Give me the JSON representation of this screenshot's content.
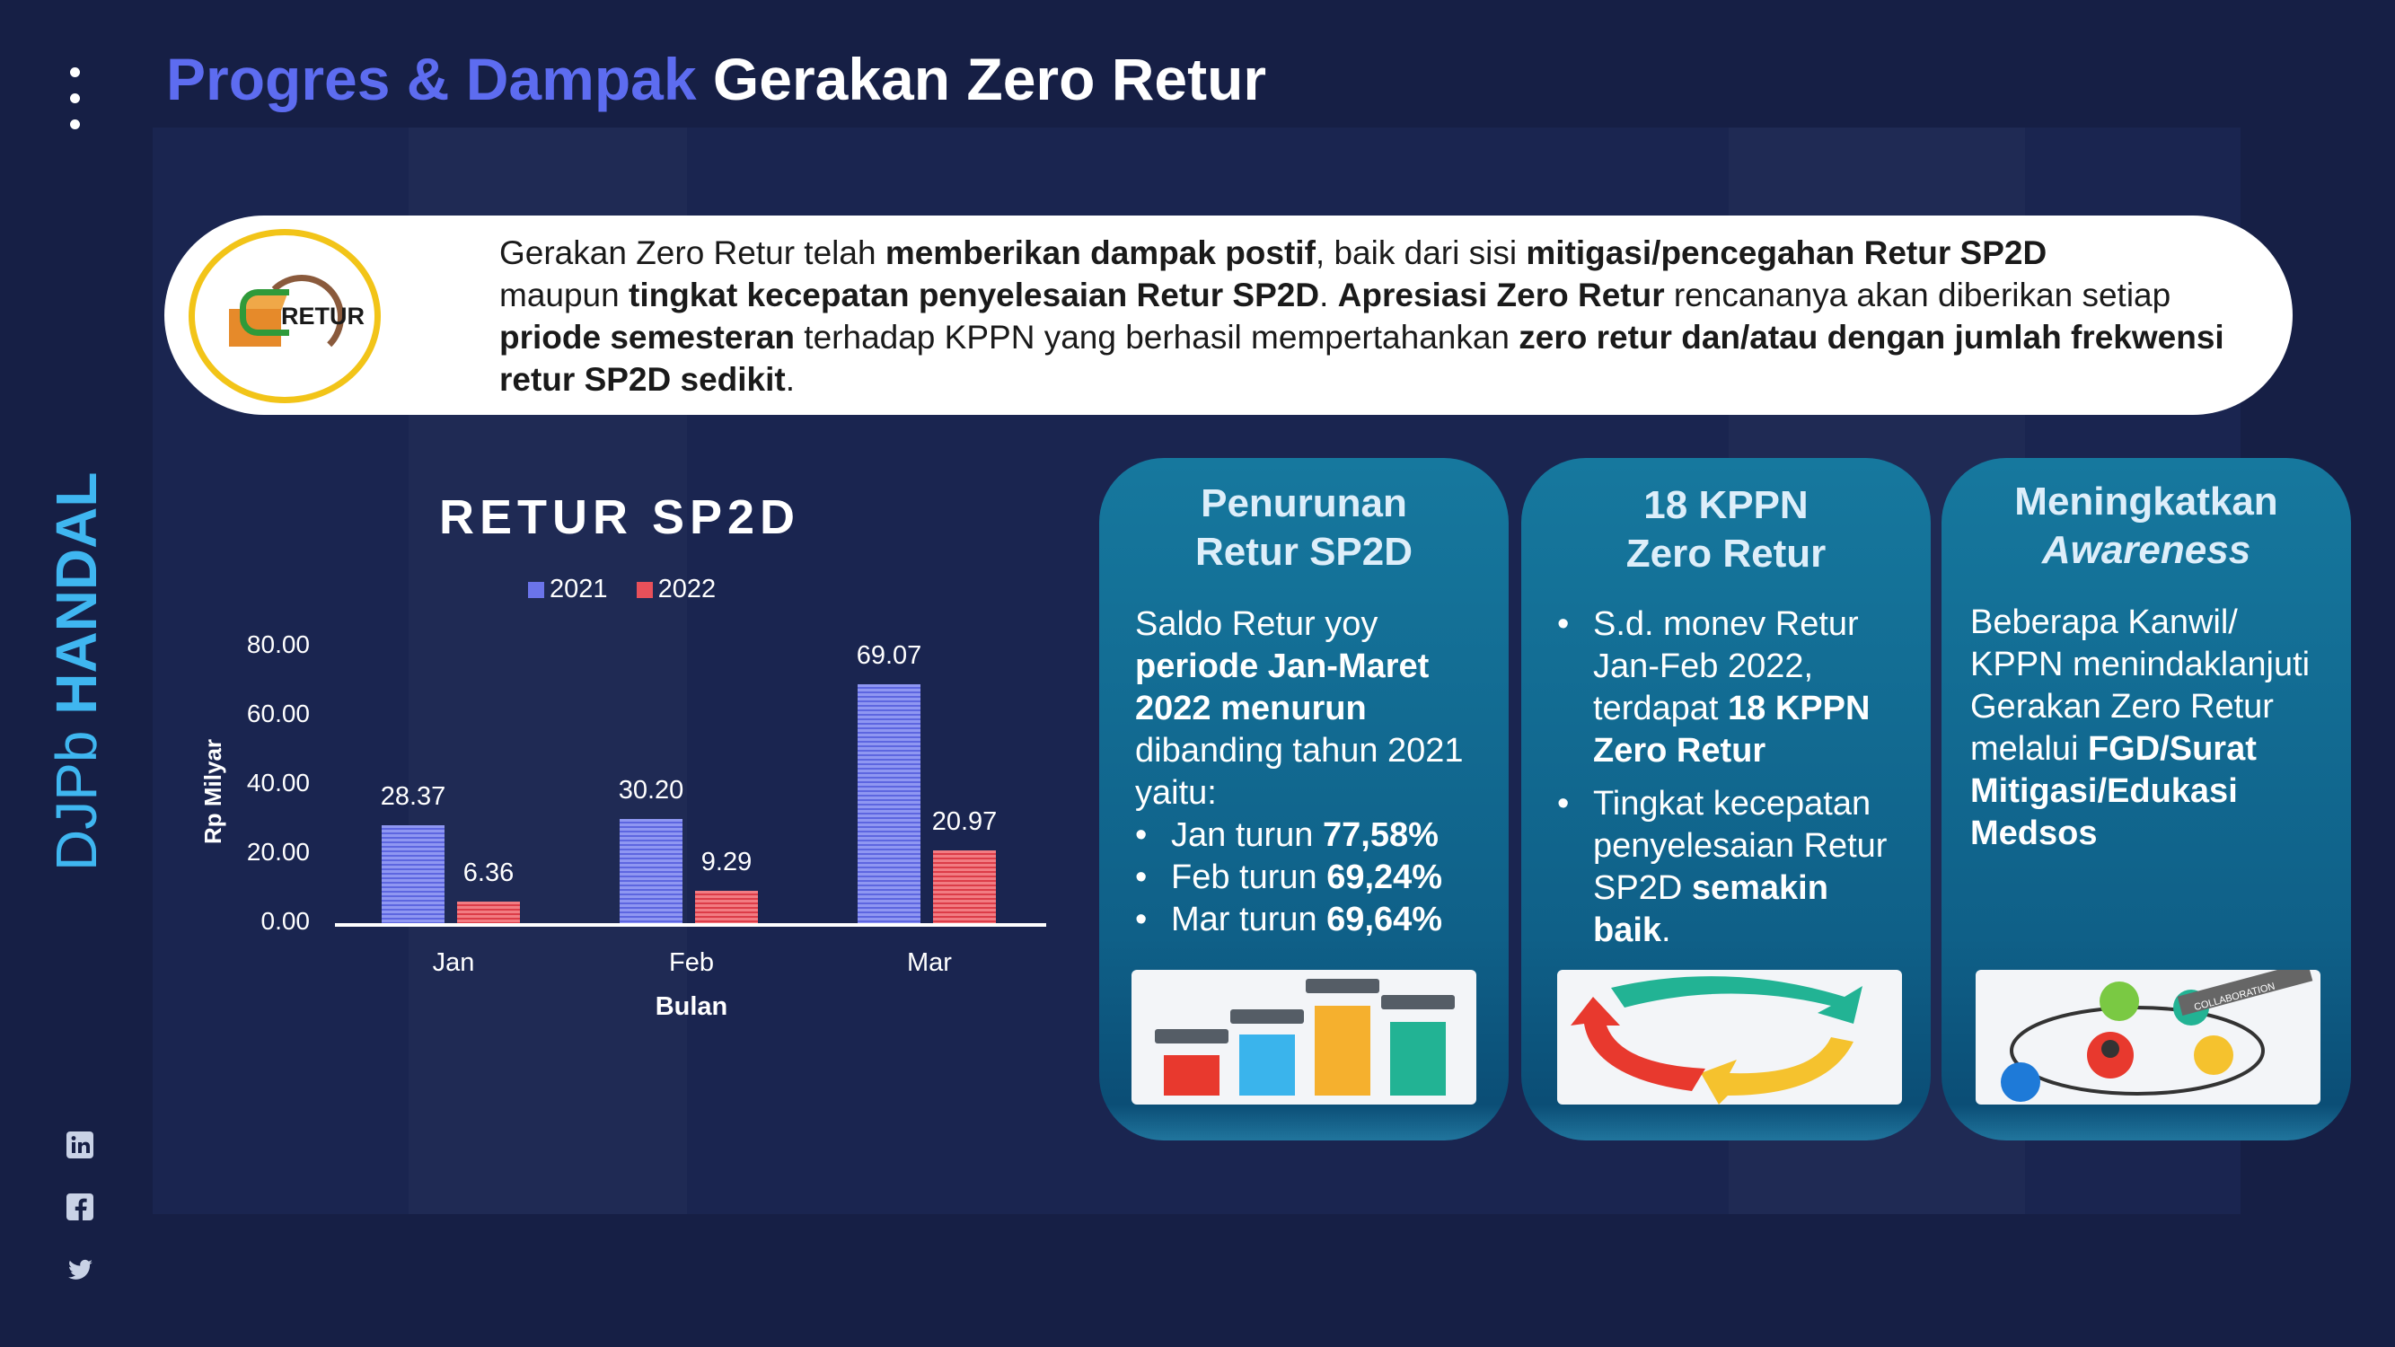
{
  "header": {
    "title_part1": "Progres & Dampak",
    "title_part2": "Gerakan Zero Retur",
    "menu_icon": "vertical-dots-icon"
  },
  "sidebar": {
    "brand_part1": "DJPb",
    "brand_part2": "HANDAL",
    "social_icons": [
      "linkedin-icon",
      "facebook-icon",
      "twitter-icon"
    ]
  },
  "banner": {
    "logo_text": "RETUR",
    "t1": "Gerakan Zero Retur telah ",
    "b1": "memberikan dampak postif",
    "t2": ", baik dari sisi ",
    "b2": "mitigasi/pencegahan Retur SP2D",
    "t3": " maupun ",
    "b3": "tingkat kecepatan penyelesaian Retur SP2D",
    "t4": ". ",
    "b4": "Apresiasi Zero Retur",
    "t5": " rencananya akan diberikan setiap ",
    "b5": "priode semesteran",
    "t6": " terhadap KPPN yang berhasil mempertahankan ",
    "b6": "zero retur dan/atau dengan jumlah frekwensi retur SP2D sedikit",
    "t7": "."
  },
  "chart_data": {
    "type": "bar",
    "title": "RETUR SP2D",
    "xlabel": "Bulan",
    "ylabel": "Rp Milyar",
    "categories": [
      "Jan",
      "Feb",
      "Mar"
    ],
    "series": [
      {
        "name": "2021",
        "values": [
          28.37,
          30.2,
          69.07
        ],
        "value_labels": [
          "28.37",
          "30.20",
          "69.07"
        ],
        "color": "#6b74ea"
      },
      {
        "name": "2022",
        "values": [
          6.36,
          9.29,
          20.97
        ],
        "value_labels": [
          "6.36",
          "9.29",
          "20.97"
        ],
        "color": "#e8505a"
      }
    ],
    "ylim": [
      0,
      80
    ],
    "yticks": [
      "0.00",
      "20.00",
      "40.00",
      "60.00",
      "80.00"
    ],
    "grid": false,
    "legend": "top"
  },
  "cards": [
    {
      "head1": "Penurunan",
      "head2": "Retur SP2D",
      "p1": "Saldo Retur yoy ",
      "p1b": "periode Jan-Maret 2022 menurun",
      "p2": " dibanding tahun 2021 yaitu:",
      "items": [
        {
          "t": "Jan turun ",
          "b": "77,58%"
        },
        {
          "t": "Feb turun ",
          "b": "69,24%"
        },
        {
          "t": "Mar turun ",
          "b": "69,64%"
        }
      ],
      "image_icon": "bar-chart-illustration"
    },
    {
      "head1": "18 KPPN",
      "head2": "Zero Retur",
      "items": [
        {
          "t": "S.d. monev Retur Jan-Feb 2022, terdapat ",
          "b": "18 KPPN Zero Retur",
          "t2": ""
        },
        {
          "t": "Tingkat kecepatan penyelesaian Retur SP2D ",
          "b": "semakin baik",
          "t2": "."
        }
      ],
      "image_icon": "cycle-arrows-illustration"
    },
    {
      "head1": "Meningkatkan",
      "head2": "Awareness",
      "p1": "Beberapa Kanwil/ KPPN menindaklanjuti Gerakan Zero Retur melalui ",
      "p1b": "FGD/Surat Mitigasi/Edukasi Medsos",
      "image_icon": "collaboration-network-illustration",
      "image_text": "COLLABORATION"
    }
  ]
}
